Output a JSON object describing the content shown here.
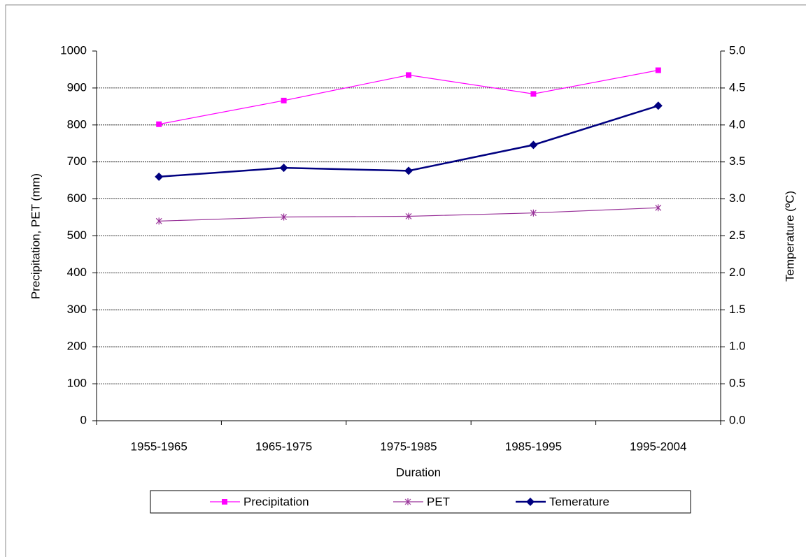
{
  "chart_data": {
    "type": "line",
    "xlabel": "Duration",
    "ylabel": "Precipitation, PET (mm)",
    "y2label": "Temperature (ºC)",
    "categories": [
      "1955-1965",
      "1965-1975",
      "1975-1985",
      "1985-1995",
      "1995-2004"
    ],
    "series": [
      {
        "name": "Precipitation",
        "color": "#ff00ff",
        "marker": "square",
        "values": [
          802,
          866,
          935,
          884,
          948
        ]
      },
      {
        "name": "PET",
        "color": "#993399",
        "marker": "asterisk",
        "values": [
          540,
          551,
          553,
          562,
          576
        ]
      },
      {
        "name": "Temerature",
        "color": "#000080",
        "marker": "diamond",
        "axis": "y2",
        "values": [
          3.3,
          3.42,
          3.38,
          3.73,
          4.26
        ]
      }
    ],
    "ylim": [
      0,
      1000
    ],
    "yticks": [
      0,
      100,
      200,
      300,
      400,
      500,
      600,
      700,
      800,
      900,
      1000
    ],
    "y2lim": [
      0,
      5
    ],
    "y2ticks": [
      {
        "value": 0,
        "label": "0.0"
      },
      {
        "value": 0.5,
        "label": "0.5"
      },
      {
        "value": 1,
        "label": "1.0"
      },
      {
        "value": 1.5,
        "label": "1.5"
      },
      {
        "value": 2,
        "label": "2.0"
      },
      {
        "value": 2.5,
        "label": "2.5"
      },
      {
        "value": 3,
        "label": "3.0"
      },
      {
        "value": 3.5,
        "label": "3.5"
      },
      {
        "value": 4,
        "label": "4.0"
      },
      {
        "value": 4.5,
        "label": "4.5"
      },
      {
        "value": 5,
        "label": "5.0"
      }
    ],
    "grid": true,
    "legend": "bottom"
  }
}
